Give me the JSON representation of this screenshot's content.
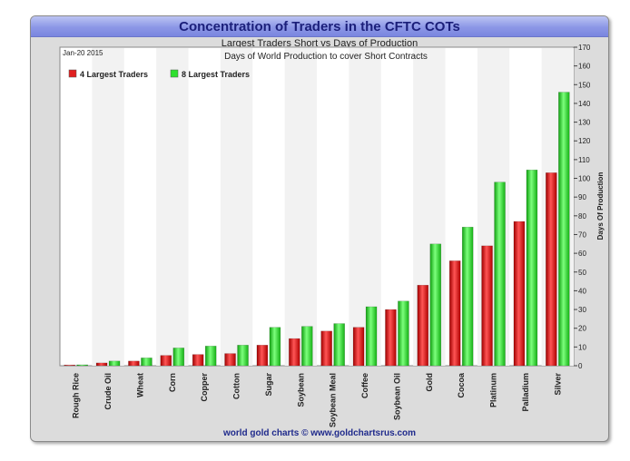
{
  "chart_data": {
    "type": "bar",
    "title": "Concentration of Traders in the CFTC COTs",
    "subtitle": "Largest Traders Short vs Days of Production",
    "inner_title": "Days of World Production to cover Short Contracts",
    "date": "Jan-20  2015",
    "ylabel": "Days Of Production",
    "ylim": [
      0,
      170
    ],
    "yticks": [
      0,
      10,
      20,
      30,
      40,
      50,
      60,
      70,
      80,
      90,
      100,
      110,
      120,
      130,
      140,
      150,
      160,
      170
    ],
    "y_axis_position": "right",
    "legend_position": "top-left",
    "grid": false,
    "footer": "world gold charts © www.goldchartsrus.com",
    "categories": [
      "Rough Rice",
      "Crude Oil",
      "Wheat",
      "Corn",
      "Copper",
      "Cotton",
      "Sugar",
      "Soybean",
      "Soybean Meal",
      "Coffee",
      "Soybean Oil",
      "Gold",
      "Cocoa",
      "Platinum",
      "Palladium",
      "Silver"
    ],
    "series": [
      {
        "name": "4 Largest Traders",
        "color": "#e02020",
        "values": [
          0.4,
          1.5,
          2.5,
          5.5,
          6,
          6.5,
          11,
          14.5,
          18.5,
          20.5,
          30,
          43,
          56,
          64,
          77,
          103
        ]
      },
      {
        "name": "8 Largest Traders",
        "color": "#2ee02e",
        "values": [
          0.5,
          2.5,
          4.2,
          9.5,
          10.5,
          11,
          20.5,
          21,
          22.5,
          31.5,
          34.5,
          65,
          74,
          98,
          104.5,
          146
        ]
      }
    ]
  }
}
